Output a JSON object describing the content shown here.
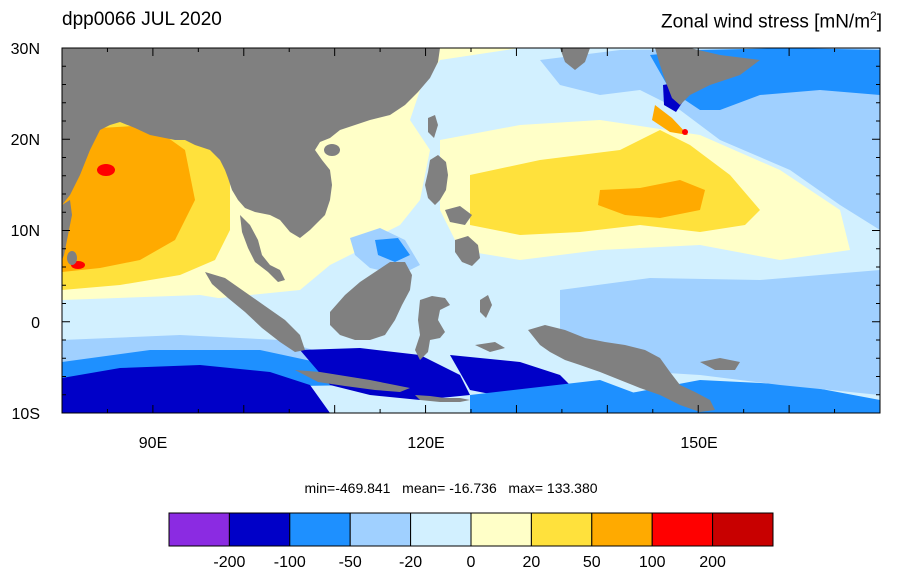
{
  "title_left": "dpp0066 JUL 2020",
  "title_right": "Zonal wind stress [mN/m",
  "title_right_sup": "2",
  "title_right_end": "]",
  "stats": {
    "min_label": "min=",
    "min": "-469.841",
    "mean_label": "mean=",
    "mean": "-16.736",
    "max_label": "max=",
    "max": "133.380"
  },
  "chart_data": {
    "type": "heatmap",
    "title": "dpp0066 JUL 2020",
    "subtitle": "Zonal wind stress [mN/m2]",
    "x_range": [
      80,
      170
    ],
    "y_range": [
      -10,
      30
    ],
    "x_ticks": [
      {
        "value": 90,
        "label": "90E"
      },
      {
        "value": 120,
        "label": "120E"
      },
      {
        "value": 150,
        "label": "150E"
      }
    ],
    "y_ticks": [
      {
        "value": 30,
        "label": "30N"
      },
      {
        "value": 20,
        "label": "20N"
      },
      {
        "value": 10,
        "label": "10N"
      },
      {
        "value": 0,
        "label": "0"
      },
      {
        "value": -10,
        "label": "10S"
      }
    ],
    "colorbar": {
      "labels": [
        "-200",
        "-100",
        "-50",
        "-20",
        "0",
        "20",
        "50",
        "100",
        "200"
      ],
      "colors": [
        "#8b2be2",
        "#0000c8",
        "#1e90ff",
        "#a0d0ff",
        "#d2f0ff",
        "#ffffc8",
        "#ffe13c",
        "#ffaa00",
        "#ff0000",
        "#c80000"
      ]
    },
    "land_color": "#808080",
    "stats": {
      "min": -469.841,
      "mean": -16.736,
      "max": 133.38
    }
  }
}
